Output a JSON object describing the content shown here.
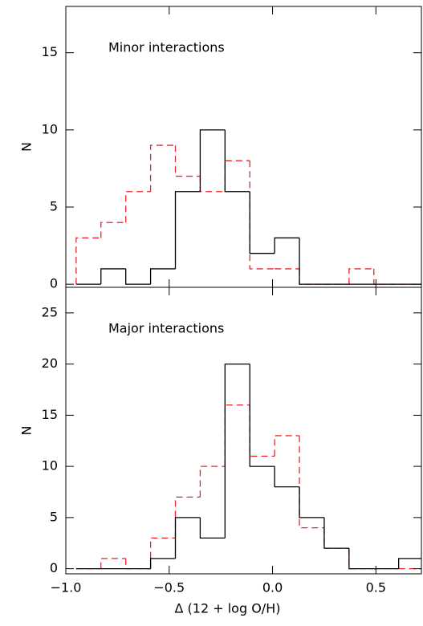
{
  "chart_data": [
    {
      "type": "histogram",
      "annotation": "Minor interactions",
      "ylabel": "N",
      "bins": [
        -0.95,
        -0.83,
        -0.71,
        -0.59,
        -0.47,
        -0.35,
        -0.23,
        -0.11,
        0.01,
        0.13,
        0.25,
        0.37,
        0.49,
        0.61,
        0.73
      ],
      "series": [
        {
          "color": "#e8262a",
          "dashed": true,
          "values": [
            3,
            4,
            6,
            9,
            7,
            6,
            8,
            1,
            1,
            0,
            0,
            1,
            0,
            0
          ]
        },
        {
          "color": "#000000",
          "dashed": false,
          "values": [
            0,
            1,
            0,
            1,
            6,
            10,
            6,
            2,
            3,
            0,
            0,
            0,
            0,
            0
          ]
        }
      ],
      "xlim": [
        -1.0,
        0.72
      ],
      "ylim": [
        -0.2,
        18
      ],
      "yticks": [
        0,
        5,
        10,
        15
      ]
    },
    {
      "type": "histogram",
      "annotation": "Major interactions",
      "ylabel": "N",
      "xlabel": "Δ (12 + log O/H)",
      "bins": [
        -0.95,
        -0.83,
        -0.71,
        -0.59,
        -0.47,
        -0.35,
        -0.23,
        -0.11,
        0.01,
        0.13,
        0.25,
        0.37,
        0.49,
        0.61,
        0.73
      ],
      "series": [
        {
          "color": "#e8262a",
          "dashed": true,
          "values": [
            0,
            1,
            0,
            3,
            7,
            10,
            16,
            11,
            13,
            4,
            2,
            0,
            0,
            0
          ]
        },
        {
          "color": "#000000",
          "dashed": false,
          "values": [
            0,
            0,
            0,
            1,
            5,
            3,
            20,
            10,
            8,
            5,
            2,
            0,
            0,
            1
          ]
        }
      ],
      "xlim": [
        -1.0,
        0.72
      ],
      "ylim": [
        -0.5,
        27.5
      ],
      "yticks": [
        0,
        5,
        10,
        15,
        20,
        25
      ],
      "xticks": [
        {
          "value": -1.0,
          "label": "−1.0"
        },
        {
          "value": -0.5,
          "label": "−0.5"
        },
        {
          "value": 0.0,
          "label": "0.0"
        },
        0.5
      ]
    }
  ]
}
